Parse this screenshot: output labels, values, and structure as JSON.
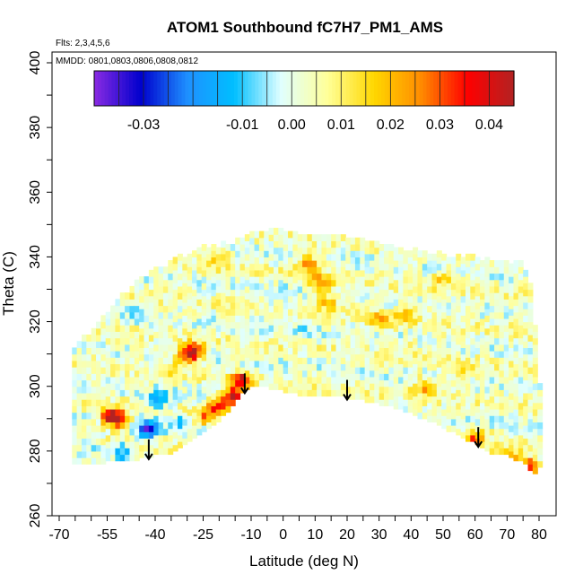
{
  "chart_data": {
    "type": "heatmap",
    "title": "ATOM1 Southbound fC7H7_PM1_AMS",
    "flights_label": "Flts: 2,3,4,5,6",
    "dates_label": "MMDD: 0801,0803,0806,0808,0812",
    "xlabel": "Latitude (deg N)",
    "ylabel": "Theta (C)",
    "xlim": [
      -70,
      80
    ],
    "ylim": [
      260,
      400
    ],
    "x_ticks": [
      -70,
      -55,
      -40,
      -25,
      -10,
      0,
      10,
      20,
      30,
      40,
      50,
      60,
      70,
      80
    ],
    "y_ticks": [
      260,
      280,
      300,
      320,
      340,
      360,
      380,
      400
    ],
    "colorbar": {
      "range": [
        -0.04,
        0.045
      ],
      "tick_values": [
        -0.03,
        -0.01,
        0.0,
        0.01,
        0.02,
        0.03,
        0.04
      ],
      "tick_labels": [
        "-0.03",
        "-0.01",
        "0.00",
        "0.01",
        "0.02",
        "0.03",
        "0.04"
      ],
      "colors": [
        "#8a2be2",
        "#0000cd",
        "#1e90ff",
        "#00bfff",
        "#e0ffff",
        "#ffff99",
        "#ffd700",
        "#ff8c00",
        "#ff0000",
        "#b22222"
      ]
    },
    "grid": false,
    "arrows_latitude": [
      -42,
      -12,
      20,
      61
    ],
    "envelope": {
      "lat": [
        -66,
        -60,
        -55,
        -50,
        -45,
        -40,
        -35,
        -30,
        -25,
        -20,
        -15,
        -12,
        -10,
        -5,
        0,
        5,
        10,
        15,
        20,
        25,
        30,
        35,
        40,
        45,
        50,
        55,
        60,
        65,
        70,
        75,
        78,
        80
      ],
      "theta_bottom": [
        276,
        276,
        277,
        277,
        278,
        279,
        280,
        283,
        286,
        290,
        295,
        299,
        300,
        300,
        299,
        298,
        297,
        297,
        297,
        296,
        295,
        294,
        292,
        290,
        288,
        285,
        283,
        280,
        279,
        277,
        273,
        275
      ],
      "theta_top": [
        311,
        316,
        322,
        328,
        332,
        335,
        338,
        340,
        342,
        343,
        344,
        345,
        346,
        347,
        348,
        347,
        347,
        346,
        345,
        344,
        343,
        342,
        342,
        341,
        340,
        340,
        339,
        339,
        338,
        337,
        330,
        300
      ]
    },
    "hotspots": [
      {
        "lat": -42,
        "theta": 287,
        "value": -0.032
      },
      {
        "lat": -39,
        "theta": 296,
        "value": -0.018
      },
      {
        "lat": -52,
        "theta": 290,
        "value": 0.035
      },
      {
        "lat": -54,
        "theta": 291,
        "value": 0.028
      },
      {
        "lat": -28,
        "theta": 311,
        "value": 0.032
      },
      {
        "lat": -30,
        "theta": 310,
        "value": 0.025
      },
      {
        "lat": -16,
        "theta": 297,
        "value": 0.04
      },
      {
        "lat": -20,
        "theta": 294,
        "value": 0.03
      },
      {
        "lat": -24,
        "theta": 291,
        "value": 0.022
      },
      {
        "lat": -13,
        "theta": 302,
        "value": 0.038
      },
      {
        "lat": 8,
        "theta": 338,
        "value": 0.022
      },
      {
        "lat": 12,
        "theta": 332,
        "value": 0.025
      },
      {
        "lat": 14,
        "theta": 326,
        "value": 0.018
      },
      {
        "lat": 38,
        "theta": 322,
        "value": 0.018
      },
      {
        "lat": 30,
        "theta": 321,
        "value": 0.015
      },
      {
        "lat": 44,
        "theta": 300,
        "value": 0.02
      },
      {
        "lat": 60,
        "theta": 284,
        "value": 0.022
      },
      {
        "lat": 67,
        "theta": 278,
        "value": 0.025
      },
      {
        "lat": 72,
        "theta": 277,
        "value": 0.03
      },
      {
        "lat": 77,
        "theta": 275,
        "value": 0.038
      },
      {
        "lat": -50,
        "theta": 280,
        "value": -0.015
      },
      {
        "lat": -60,
        "theta": 283,
        "value": -0.01
      },
      {
        "lat": -35,
        "theta": 305,
        "value": 0.012
      },
      {
        "lat": -33,
        "theta": 289,
        "value": -0.012
      },
      {
        "lat": 0,
        "theta": 328,
        "value": -0.008
      },
      {
        "lat": 8,
        "theta": 318,
        "value": -0.006
      },
      {
        "lat": 50,
        "theta": 333,
        "value": 0.012
      },
      {
        "lat": 57,
        "theta": 305,
        "value": 0.01
      },
      {
        "lat": -45,
        "theta": 322,
        "value": -0.008
      },
      {
        "lat": -20,
        "theta": 340,
        "value": 0.015
      },
      {
        "lat": 40,
        "theta": 312,
        "value": 0.006
      }
    ]
  }
}
